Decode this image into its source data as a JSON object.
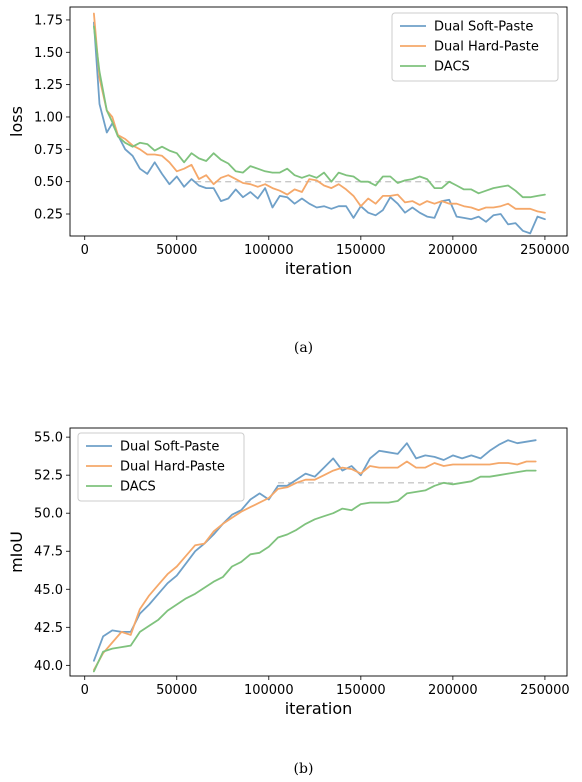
{
  "chart_data": [
    {
      "type": "line",
      "caption": "(a)",
      "xlabel": "iteration",
      "ylabel": "loss",
      "xlim": [
        -8000,
        262000
      ],
      "ylim": [
        0.08,
        1.85
      ],
      "xticks": [
        0,
        50000,
        100000,
        150000,
        200000,
        250000
      ],
      "xtick_labels": [
        "0",
        "50000",
        "100000",
        "150000",
        "200000",
        "250000"
      ],
      "yticks": [
        0.25,
        0.5,
        0.75,
        1.0,
        1.25,
        1.5,
        1.75
      ],
      "ytick_labels": [
        "0.25",
        "0.50",
        "0.75",
        "1.00",
        "1.25",
        "1.50",
        "1.75"
      ],
      "legend_position": "top-right",
      "reference_line": {
        "y": 0.5,
        "x_start": 60000,
        "x_end": 200000,
        "style": "dashed",
        "color": "#c8c8c8"
      },
      "series": [
        {
          "name": "Dual Soft-Paste",
          "color": "#6fa0c8",
          "x": [
            5000,
            8000,
            12000,
            15000,
            18000,
            22000,
            26000,
            30000,
            34000,
            38000,
            42000,
            46000,
            50000,
            54000,
            58000,
            62000,
            66000,
            70000,
            74000,
            78000,
            82000,
            86000,
            90000,
            94000,
            98000,
            102000,
            106000,
            110000,
            114000,
            118000,
            122000,
            126000,
            130000,
            134000,
            138000,
            142000,
            146000,
            150000,
            154000,
            158000,
            162000,
            166000,
            170000,
            174000,
            178000,
            182000,
            186000,
            190000,
            194000,
            198000,
            202000,
            206000,
            210000,
            214000,
            218000,
            222000,
            226000,
            230000,
            234000,
            238000,
            242000,
            246000,
            250000
          ],
          "y": [
            1.73,
            1.1,
            0.88,
            0.95,
            0.86,
            0.75,
            0.7,
            0.6,
            0.56,
            0.65,
            0.56,
            0.48,
            0.54,
            0.46,
            0.52,
            0.47,
            0.45,
            0.45,
            0.35,
            0.37,
            0.44,
            0.38,
            0.42,
            0.37,
            0.45,
            0.3,
            0.39,
            0.38,
            0.33,
            0.37,
            0.33,
            0.3,
            0.31,
            0.29,
            0.31,
            0.31,
            0.22,
            0.31,
            0.26,
            0.24,
            0.28,
            0.38,
            0.33,
            0.26,
            0.3,
            0.26,
            0.23,
            0.22,
            0.35,
            0.36,
            0.23,
            0.22,
            0.21,
            0.23,
            0.19,
            0.24,
            0.25,
            0.17,
            0.18,
            0.12,
            0.1,
            0.23,
            0.21
          ]
        },
        {
          "name": "Dual Hard-Paste",
          "color": "#f5a86a",
          "x": [
            5000,
            8000,
            12000,
            15000,
            18000,
            22000,
            26000,
            30000,
            34000,
            38000,
            42000,
            46000,
            50000,
            54000,
            58000,
            62000,
            66000,
            70000,
            74000,
            78000,
            82000,
            86000,
            90000,
            94000,
            98000,
            102000,
            106000,
            110000,
            114000,
            118000,
            122000,
            126000,
            130000,
            134000,
            138000,
            142000,
            146000,
            150000,
            154000,
            158000,
            162000,
            166000,
            170000,
            174000,
            178000,
            182000,
            186000,
            190000,
            194000,
            198000,
            202000,
            206000,
            210000,
            214000,
            218000,
            222000,
            226000,
            230000,
            234000,
            238000,
            242000,
            246000,
            250000
          ],
          "y": [
            1.8,
            1.3,
            1.05,
            1.0,
            0.86,
            0.83,
            0.78,
            0.75,
            0.71,
            0.71,
            0.7,
            0.65,
            0.58,
            0.6,
            0.63,
            0.52,
            0.55,
            0.48,
            0.53,
            0.55,
            0.52,
            0.49,
            0.48,
            0.46,
            0.48,
            0.45,
            0.43,
            0.4,
            0.44,
            0.42,
            0.52,
            0.51,
            0.47,
            0.45,
            0.48,
            0.44,
            0.39,
            0.31,
            0.37,
            0.33,
            0.39,
            0.39,
            0.4,
            0.34,
            0.35,
            0.32,
            0.35,
            0.33,
            0.35,
            0.33,
            0.33,
            0.31,
            0.3,
            0.28,
            0.3,
            0.3,
            0.31,
            0.33,
            0.29,
            0.29,
            0.29,
            0.27,
            0.26
          ]
        },
        {
          "name": "DACS",
          "color": "#7fc27d",
          "x": [
            5000,
            8000,
            12000,
            15000,
            18000,
            22000,
            26000,
            30000,
            34000,
            38000,
            42000,
            46000,
            50000,
            54000,
            58000,
            62000,
            66000,
            70000,
            74000,
            78000,
            82000,
            86000,
            90000,
            94000,
            98000,
            102000,
            106000,
            110000,
            114000,
            118000,
            122000,
            126000,
            130000,
            134000,
            138000,
            142000,
            146000,
            150000,
            154000,
            158000,
            162000,
            166000,
            170000,
            174000,
            178000,
            182000,
            186000,
            190000,
            194000,
            198000,
            202000,
            206000,
            210000,
            214000,
            218000,
            222000,
            226000,
            230000,
            234000,
            238000,
            242000,
            246000,
            250000
          ],
          "y": [
            1.7,
            1.35,
            1.05,
            0.96,
            0.85,
            0.8,
            0.77,
            0.8,
            0.79,
            0.74,
            0.77,
            0.74,
            0.72,
            0.65,
            0.72,
            0.68,
            0.66,
            0.72,
            0.67,
            0.64,
            0.58,
            0.57,
            0.62,
            0.6,
            0.58,
            0.57,
            0.57,
            0.6,
            0.55,
            0.53,
            0.55,
            0.53,
            0.57,
            0.5,
            0.57,
            0.55,
            0.54,
            0.5,
            0.5,
            0.47,
            0.54,
            0.54,
            0.49,
            0.51,
            0.52,
            0.54,
            0.52,
            0.45,
            0.45,
            0.5,
            0.47,
            0.44,
            0.44,
            0.41,
            0.43,
            0.45,
            0.46,
            0.47,
            0.43,
            0.38,
            0.38,
            0.39,
            0.4
          ]
        }
      ]
    },
    {
      "type": "line",
      "caption": "(b)",
      "xlabel": "iteration",
      "ylabel": "mIoU",
      "xlim": [
        -8000,
        262000
      ],
      "ylim": [
        39.3,
        55.6
      ],
      "xticks": [
        0,
        50000,
        100000,
        150000,
        200000,
        250000
      ],
      "xtick_labels": [
        "0",
        "50000",
        "100000",
        "150000",
        "200000",
        "250000"
      ],
      "yticks": [
        40.0,
        42.5,
        45.0,
        47.5,
        50.0,
        52.5,
        55.0
      ],
      "ytick_labels": [
        "40.0",
        "42.5",
        "45.0",
        "47.5",
        "50.0",
        "52.5",
        "55.0"
      ],
      "legend_position": "top-left",
      "reference_line": {
        "y": 52.0,
        "x_start": 105000,
        "x_end": 200000,
        "style": "dashed",
        "color": "#c8c8c8"
      },
      "series": [
        {
          "name": "Dual Soft-Paste",
          "color": "#6fa0c8",
          "x": [
            5000,
            10000,
            15000,
            20000,
            25000,
            30000,
            35000,
            40000,
            45000,
            50000,
            55000,
            60000,
            65000,
            70000,
            75000,
            80000,
            85000,
            90000,
            95000,
            100000,
            105000,
            110000,
            115000,
            120000,
            125000,
            130000,
            135000,
            140000,
            145000,
            150000,
            155000,
            160000,
            165000,
            170000,
            175000,
            180000,
            185000,
            190000,
            195000,
            200000,
            205000,
            210000,
            215000,
            220000,
            225000,
            230000,
            235000,
            240000,
            245000
          ],
          "y": [
            40.3,
            41.9,
            42.3,
            42.2,
            42.2,
            43.4,
            44.0,
            44.7,
            45.4,
            45.9,
            46.7,
            47.5,
            48.0,
            48.6,
            49.3,
            49.9,
            50.2,
            50.9,
            51.3,
            50.9,
            51.8,
            51.8,
            52.2,
            52.6,
            52.4,
            53.0,
            53.6,
            52.8,
            53.1,
            52.5,
            53.6,
            54.1,
            54.0,
            53.9,
            54.6,
            53.6,
            53.8,
            53.7,
            53.5,
            53.8,
            53.6,
            53.8,
            53.6,
            54.1,
            54.5,
            54.8,
            54.6,
            54.7,
            54.8
          ]
        },
        {
          "name": "Dual Hard-Paste",
          "color": "#f5a86a",
          "x": [
            5000,
            10000,
            15000,
            20000,
            25000,
            30000,
            35000,
            40000,
            45000,
            50000,
            55000,
            60000,
            65000,
            70000,
            75000,
            80000,
            85000,
            90000,
            95000,
            100000,
            105000,
            110000,
            115000,
            120000,
            125000,
            130000,
            135000,
            140000,
            145000,
            150000,
            155000,
            160000,
            165000,
            170000,
            175000,
            180000,
            185000,
            190000,
            195000,
            200000,
            205000,
            210000,
            215000,
            220000,
            225000,
            230000,
            235000,
            240000,
            245000
          ],
          "y": [
            39.7,
            40.8,
            41.5,
            42.2,
            42.0,
            43.7,
            44.6,
            45.3,
            46.0,
            46.5,
            47.2,
            47.9,
            48.0,
            48.8,
            49.3,
            49.7,
            50.1,
            50.4,
            50.7,
            51.0,
            51.6,
            51.7,
            52.0,
            52.2,
            52.2,
            52.5,
            52.8,
            53.0,
            52.9,
            52.6,
            53.1,
            53.0,
            53.0,
            53.0,
            53.4,
            53.0,
            53.0,
            53.3,
            53.1,
            53.2,
            53.2,
            53.2,
            53.2,
            53.2,
            53.3,
            53.3,
            53.2,
            53.4,
            53.4
          ]
        },
        {
          "name": "DACS",
          "color": "#7fc27d",
          "x": [
            5000,
            10000,
            15000,
            20000,
            25000,
            30000,
            35000,
            40000,
            45000,
            50000,
            55000,
            60000,
            65000,
            70000,
            75000,
            80000,
            85000,
            90000,
            95000,
            100000,
            105000,
            110000,
            115000,
            120000,
            125000,
            130000,
            135000,
            140000,
            145000,
            150000,
            155000,
            160000,
            165000,
            170000,
            175000,
            180000,
            185000,
            190000,
            195000,
            200000,
            205000,
            210000,
            215000,
            220000,
            225000,
            230000,
            235000,
            240000,
            245000
          ],
          "y": [
            39.6,
            40.9,
            41.1,
            41.2,
            41.3,
            42.2,
            42.6,
            43.0,
            43.6,
            44.0,
            44.4,
            44.7,
            45.1,
            45.5,
            45.8,
            46.5,
            46.8,
            47.3,
            47.4,
            47.8,
            48.4,
            48.6,
            48.9,
            49.3,
            49.6,
            49.8,
            50.0,
            50.3,
            50.2,
            50.6,
            50.7,
            50.7,
            50.7,
            50.8,
            51.3,
            51.4,
            51.5,
            51.8,
            52.0,
            51.9,
            52.0,
            52.1,
            52.4,
            52.4,
            52.5,
            52.6,
            52.7,
            52.8,
            52.8
          ]
        }
      ]
    }
  ]
}
